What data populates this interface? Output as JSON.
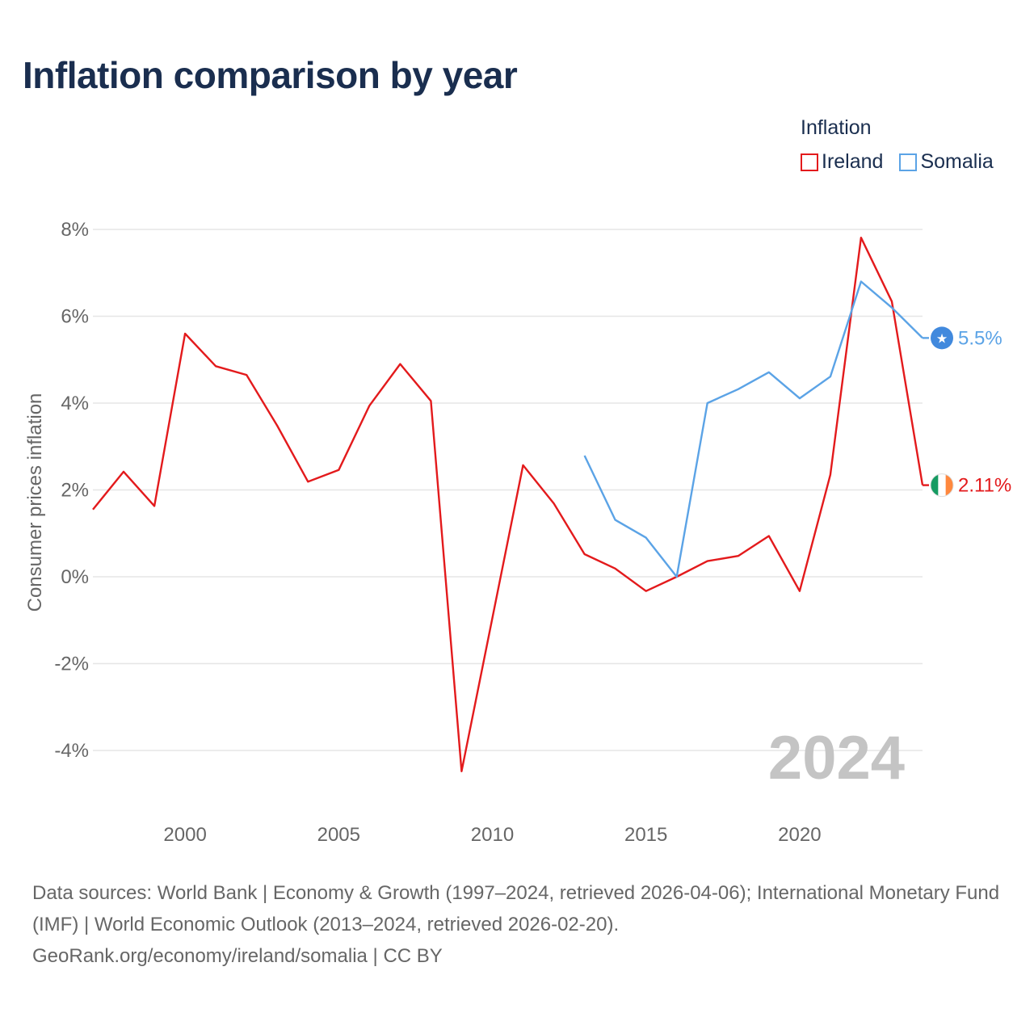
{
  "title": "Inflation comparison by year",
  "legend": {
    "title": "Inflation",
    "items": [
      {
        "label": "Ireland",
        "color": "#e31a1c"
      },
      {
        "label": "Somalia",
        "color": "#5ba3e6"
      }
    ]
  },
  "chart_data": {
    "type": "line",
    "ylabel": "Consumer prices inflation",
    "xlabel": "",
    "ylim": [
      -5,
      8
    ],
    "xlim": [
      1997,
      2024
    ],
    "y_ticks": [
      8,
      6,
      4,
      2,
      0,
      -2,
      -4
    ],
    "y_tick_labels": [
      "8%",
      "6%",
      "4%",
      "2%",
      "0%",
      "-2%",
      "-4%"
    ],
    "x_ticks": [
      2000,
      2005,
      2010,
      2015,
      2020
    ],
    "x_tick_labels": [
      "2000",
      "2005",
      "2010",
      "2015",
      "2020"
    ],
    "watermark_year": "2024",
    "grid": true,
    "series": [
      {
        "name": "Ireland",
        "color": "#e31a1c",
        "flag": "ireland-flag",
        "end_label": "2.11%",
        "x": [
          1997,
          1998,
          1999,
          2000,
          2001,
          2002,
          2003,
          2004,
          2005,
          2006,
          2007,
          2008,
          2009,
          2010,
          2011,
          2012,
          2013,
          2014,
          2015,
          2016,
          2017,
          2018,
          2019,
          2020,
          2021,
          2022,
          2023,
          2024
        ],
        "values": [
          1.55,
          2.42,
          1.63,
          5.6,
          4.85,
          4.65,
          3.48,
          2.19,
          2.46,
          3.94,
          4.9,
          4.05,
          -4.48,
          -0.95,
          2.57,
          1.69,
          0.52,
          0.19,
          -0.33,
          0.0,
          0.36,
          0.48,
          0.94,
          -0.33,
          2.35,
          7.81,
          6.34,
          2.11
        ]
      },
      {
        "name": "Somalia",
        "color": "#5ba3e6",
        "flag": "somalia-flag",
        "end_label": "5.5%",
        "x": [
          2013,
          2014,
          2015,
          2016,
          2017,
          2018,
          2019,
          2020,
          2021,
          2022,
          2023,
          2024
        ],
        "values": [
          2.79,
          1.31,
          0.9,
          0.0,
          4.0,
          4.32,
          4.71,
          4.11,
          4.61,
          6.8,
          6.2,
          5.5
        ]
      }
    ]
  },
  "footer": {
    "sources": "Data sources: World Bank | Economy & Growth (1997–2024, retrieved 2026-04-06); International Monetary Fund (IMF) | World Economic Outlook (2013–2024, retrieved 2026-02-20).",
    "attribution": "GeoRank.org/economy/ireland/somalia | CC BY"
  }
}
